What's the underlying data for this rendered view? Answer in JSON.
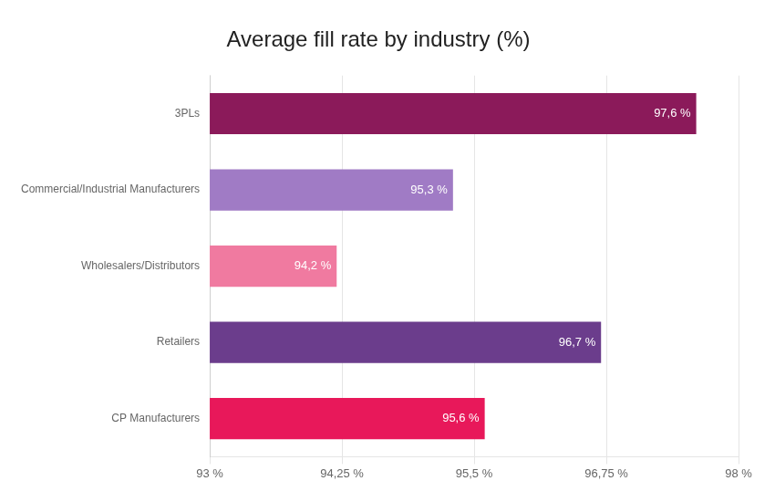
{
  "chart_data": {
    "type": "bar",
    "orientation": "horizontal",
    "title": "Average fill rate by industry (%)",
    "categories": [
      "CP Manufacturers",
      "Retailers",
      "Wholesalers/Distributors",
      "Commercial/Industrial Manufacturers",
      "3PLs"
    ],
    "values": [
      95.6,
      96.7,
      94.2,
      95.3,
      97.6
    ],
    "value_labels": [
      "95,6 %",
      "96,7 %",
      "94,2 %",
      "95,3 %",
      "97,6 %"
    ],
    "data_labels": true,
    "colors": [
      "#E8185A",
      "#6B3D8C",
      "#F07AA0",
      "#A07BC5",
      "#8B1A5A"
    ],
    "xlim": [
      93,
      98
    ],
    "xticks": [
      {
        "value": 93,
        "label": "93 %"
      },
      {
        "value": 94.25,
        "label": "94,25 %"
      },
      {
        "value": 95.5,
        "label": "95,5 %"
      },
      {
        "value": 96.75,
        "label": "96,75 %"
      },
      {
        "value": 98,
        "label": "98 %"
      }
    ],
    "grid": true
  }
}
